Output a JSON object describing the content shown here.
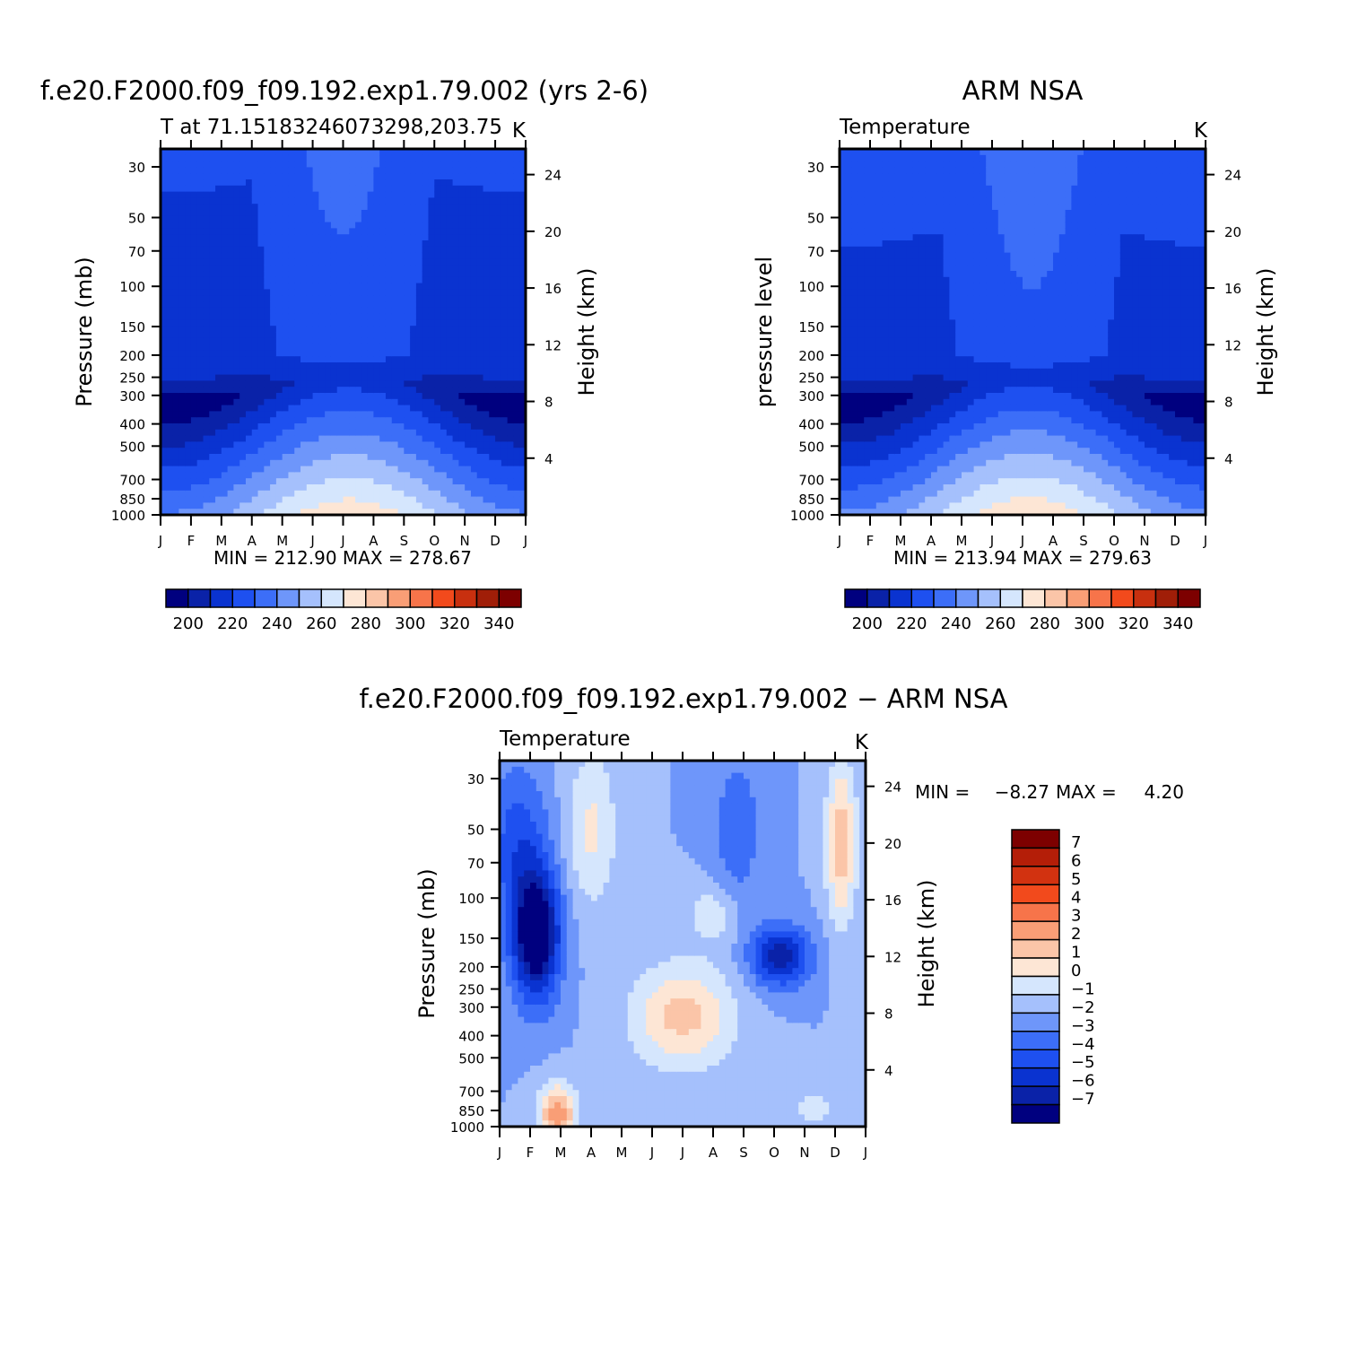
{
  "colors": {
    "temp_scale": [
      "#00007f",
      "#0a22a8",
      "#0a33d0",
      "#1e50f0",
      "#3c6ef8",
      "#6e96fa",
      "#a5c0fc",
      "#d5e6fd",
      "#fde6d5",
      "#fbc5a8",
      "#f99e76",
      "#f7744a",
      "#f24a1c",
      "#c8300f",
      "#a01e08",
      "#7d0000"
    ],
    "diff_scale": [
      "#00007f",
      "#0a22a8",
      "#0a33d0",
      "#1e50f0",
      "#3c6ef8",
      "#6e96fa",
      "#a5c0fc",
      "#d5e6fd",
      "#fde6d5",
      "#fbc5a8",
      "#f99e76",
      "#f7744a",
      "#f24a1c",
      "#c8300f",
      "#7d0000"
    ]
  },
  "chart_data": [
    {
      "type": "contour",
      "title": "f.e20.F2000.f09_f09.192.exp1.79.002 (yrs 2-6)",
      "subtitle_left": "T at 71.15183246073298,203.75",
      "subtitle_right": "K",
      "ylabel": "Pressure (mb)",
      "ylabel_right": "Height (km)",
      "x_ticks": [
        "J",
        "F",
        "M",
        "A",
        "M",
        "J",
        "J",
        "A",
        "S",
        "O",
        "N",
        "D",
        "J"
      ],
      "y_ticks": [
        "30",
        "50",
        "70",
        "100",
        "150",
        "200",
        "250",
        "300",
        "400",
        "500",
        "700",
        "850",
        "1000"
      ],
      "y_right_ticks": [
        "24",
        "20",
        "16",
        "12",
        "8",
        "4"
      ],
      "stats": "MIN = 212.90 MAX = 278.67",
      "min": 212.9,
      "max": 278.67,
      "colorbar_labels": [
        "200",
        "220",
        "240",
        "260",
        "280",
        "300",
        "320",
        "340"
      ],
      "colorbar_levels": [
        195,
        200,
        205,
        210,
        215,
        220,
        225,
        230,
        235,
        240,
        245,
        250,
        255,
        260,
        265,
        270,
        275
      ],
      "model": "modelA"
    },
    {
      "type": "contour",
      "title": "ARM NSA",
      "subtitle_left": "Temperature",
      "subtitle_right": "K",
      "ylabel": "pressure level",
      "ylabel_right": "Height (km)",
      "x_ticks": [
        "J",
        "F",
        "M",
        "A",
        "M",
        "J",
        "J",
        "A",
        "S",
        "O",
        "N",
        "D",
        "J"
      ],
      "y_ticks": [
        "30",
        "50",
        "70",
        "100",
        "150",
        "200",
        "250",
        "300",
        "400",
        "500",
        "700",
        "850",
        "1000"
      ],
      "y_right_ticks": [
        "24",
        "20",
        "16",
        "12",
        "8",
        "4"
      ],
      "stats": "MIN = 213.94 MAX = 279.63",
      "min": 213.94,
      "max": 279.63,
      "colorbar_labels": [
        "200",
        "220",
        "240",
        "260",
        "280",
        "300",
        "320",
        "340"
      ],
      "model": "modelB"
    },
    {
      "type": "contour",
      "title": "f.e20.F2000.f09_f09.192.exp1.79.002 − ARM NSA",
      "subtitle_left": "Temperature",
      "subtitle_right": "K",
      "ylabel": "Pressure (mb)",
      "ylabel_right": "Height (km)",
      "x_ticks": [
        "J",
        "F",
        "M",
        "A",
        "M",
        "J",
        "J",
        "A",
        "S",
        "O",
        "N",
        "D",
        "J"
      ],
      "y_ticks": [
        "30",
        "50",
        "70",
        "100",
        "150",
        "200",
        "250",
        "300",
        "400",
        "500",
        "700",
        "850",
        "1000"
      ],
      "y_right_ticks": [
        "24",
        "20",
        "16",
        "12",
        "8",
        "4"
      ],
      "stats_min_label": "MIN =",
      "stats_min": "−8.27",
      "stats_max_label": "MAX =",
      "stats_max": "4.20",
      "min": -8.27,
      "max": 4.2,
      "colorbar_labels": [
        "7",
        "6",
        "5",
        "4",
        "3",
        "2",
        "1",
        "0",
        "−1",
        "−2",
        "−3",
        "−4",
        "−5",
        "−6",
        "−7"
      ]
    }
  ]
}
